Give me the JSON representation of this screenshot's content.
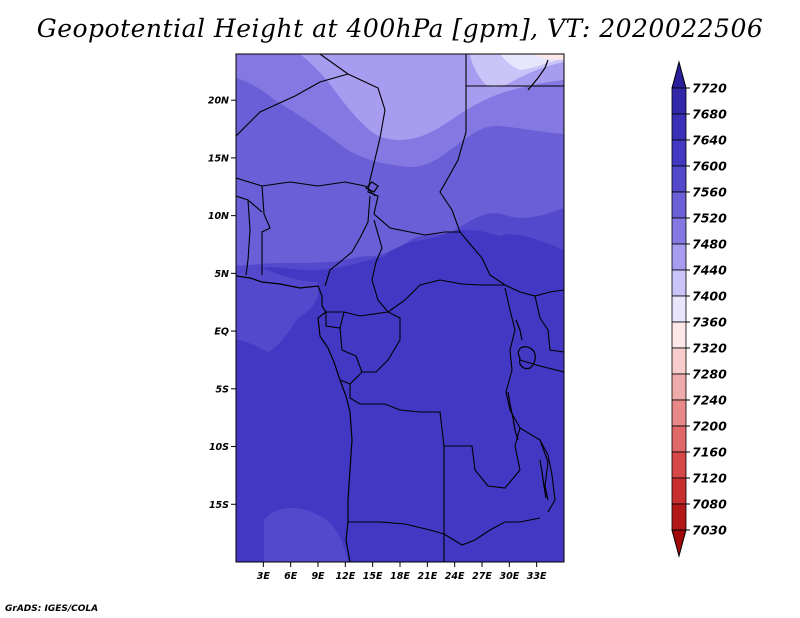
{
  "title": "Geopotential Height at 400hPa [gpm], VT: 2020022506",
  "credit": "GrADS: IGES/COLA",
  "map": {
    "lon_range": [
      0,
      36
    ],
    "lat_range": [
      -20,
      24
    ],
    "lat_ticks": [
      {
        "value": 20,
        "label": "20N"
      },
      {
        "value": 15,
        "label": "15N"
      },
      {
        "value": 10,
        "label": "10N"
      },
      {
        "value": 5,
        "label": "5N"
      },
      {
        "value": 0,
        "label": "EQ"
      },
      {
        "value": -5,
        "label": "5S"
      },
      {
        "value": -10,
        "label": "10S"
      },
      {
        "value": -15,
        "label": "15S"
      }
    ],
    "lon_ticks": [
      {
        "value": 3,
        "label": "3E"
      },
      {
        "value": 6,
        "label": "6E"
      },
      {
        "value": 9,
        "label": "9E"
      },
      {
        "value": 12,
        "label": "12E"
      },
      {
        "value": 15,
        "label": "15E"
      },
      {
        "value": 18,
        "label": "18E"
      },
      {
        "value": 21,
        "label": "21E"
      },
      {
        "value": 24,
        "label": "24E"
      },
      {
        "value": 27,
        "label": "27E"
      },
      {
        "value": 30,
        "label": "30E"
      },
      {
        "value": 33,
        "label": "33E"
      }
    ]
  },
  "colorbar": {
    "levels": [
      "7720",
      "7680",
      "7640",
      "7600",
      "7560",
      "7520",
      "7480",
      "7440",
      "7400",
      "7360",
      "7320",
      "7280",
      "7240",
      "7200",
      "7160",
      "7120",
      "7080",
      "7030"
    ],
    "colors": [
      "#2a1f9a",
      "#3327aa",
      "#3b31b8",
      "#4338c4",
      "#5448cc",
      "#6a5fd6",
      "#8578e2",
      "#a79cf0",
      "#cac4f8",
      "#e8e6fc",
      "#fde7e7",
      "#f7cccc",
      "#efaaaa",
      "#e88888",
      "#e06868",
      "#d64848",
      "#c83030",
      "#b31818",
      "#a00a0a"
    ]
  },
  "field_colors": {
    "c7600": "#4338c4",
    "c7560": "#5448cc",
    "c7520": "#6a5fd6",
    "c7480": "#8578e2",
    "c7440": "#a79cf0",
    "c7400": "#cac4f8",
    "c7360": "#e8e6fc",
    "c7320": "#fde7e7",
    "c7280": "#f7cccc"
  }
}
